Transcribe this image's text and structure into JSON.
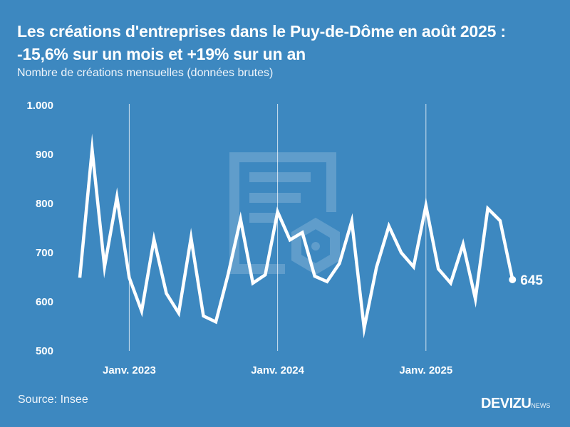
{
  "header": {
    "title": "Les créations d'entreprises dans le Puy-de-Dôme en août 2025 : -15,6% sur un mois et +19% sur un an",
    "subtitle": "Nombre de créations mensuelles (données brutes)"
  },
  "footer": {
    "source": "Source: Insee",
    "brand_main": "DEVIZU",
    "brand_sub": "NEWS"
  },
  "colors": {
    "background": "#3d88c0",
    "line": "#ffffff"
  },
  "chart_data": {
    "type": "line",
    "title": "Les créations d'entreprises dans le Puy-de-Dôme en août 2025 : -15,6% sur un mois et +19% sur un an",
    "subtitle": "Nombre de créations mensuelles (données brutes)",
    "xlabel": "",
    "ylabel": "",
    "ylim": [
      500,
      1000
    ],
    "yticks": [
      500,
      600,
      700,
      800,
      900,
      1000
    ],
    "ytick_labels": [
      "500",
      "600",
      "700",
      "800",
      "900",
      "1.000"
    ],
    "x_start": "2022-09",
    "x_end": "2025-08",
    "xticks": [
      {
        "month_index": 4,
        "label": "Janv. 2023"
      },
      {
        "month_index": 16,
        "label": "Janv. 2024"
      },
      {
        "month_index": 28,
        "label": "Janv. 2025"
      }
    ],
    "grid": "vertical at January",
    "series": [
      {
        "name": "Créations mensuelles",
        "values": [
          649,
          910,
          671,
          813,
          649,
          581,
          727,
          617,
          577,
          730,
          571,
          559,
          656,
          768,
          638,
          655,
          783,
          726,
          741,
          652,
          641,
          678,
          764,
          546,
          670,
          754,
          700,
          671,
          796,
          667,
          638,
          717,
          606,
          790,
          765,
          645
        ]
      }
    ],
    "end_label": "645"
  }
}
